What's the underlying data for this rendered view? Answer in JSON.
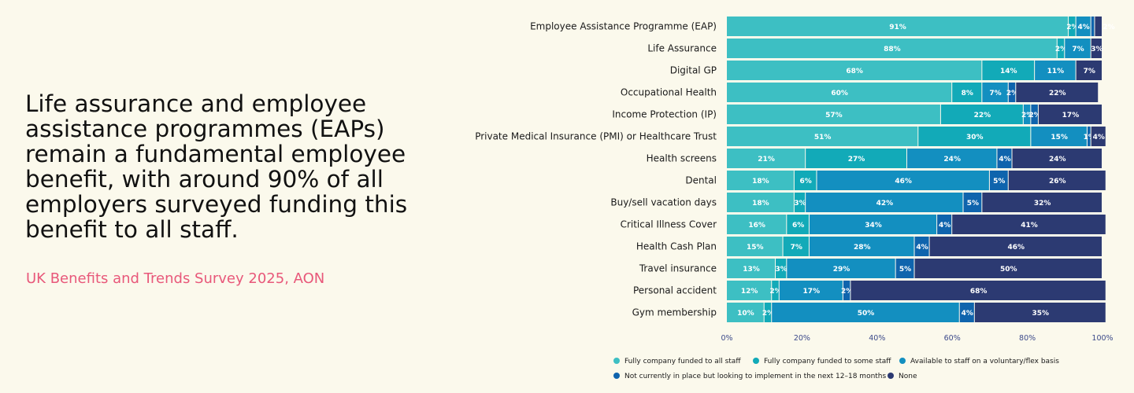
{
  "headline": "Life assurance and employee assistance programmes (EAPs) remain a fundamental employee benefit, with around 90% of all employers surveyed funding this benefit to all staff.",
  "source": "UK Benefits and Trends Survey 2025, AON",
  "chart_data": {
    "type": "bar",
    "orientation": "horizontal",
    "stacked": true,
    "xlim": [
      0,
      100
    ],
    "x_ticks": [
      "0%",
      "20%",
      "40%",
      "60%",
      "80%",
      "100%"
    ],
    "legend_placement": "bottom",
    "categories": [
      "Employee Assistance Programme (EAP)",
      "Life Assurance",
      "Digital GP",
      "Occupational Health",
      "Income Protection (IP)",
      "Private Medical Insurance (PMI) or Healthcare Trust",
      "Health screens",
      "Dental",
      "Buy/sell vacation days",
      "Critical Illness Cover",
      "Health Cash Plan",
      "Travel insurance",
      "Personal accident",
      "Gym membership"
    ],
    "series": [
      {
        "name": "Fully company funded to all staff",
        "color": "#3dbfc3",
        "values": [
          91,
          88,
          68,
          60,
          57,
          51,
          21,
          18,
          18,
          16,
          15,
          13,
          12,
          10
        ]
      },
      {
        "name": "Fully company funded to some staff",
        "color": "#12aab8",
        "values": [
          2,
          2,
          14,
          8,
          22,
          30,
          27,
          6,
          3,
          6,
          7,
          3,
          2,
          2
        ]
      },
      {
        "name": "Available to staff on a voluntary/flex basis",
        "color": "#138fc0",
        "values": [
          4,
          7,
          11,
          7,
          2,
          15,
          24,
          46,
          42,
          34,
          28,
          29,
          17,
          50
        ]
      },
      {
        "name": "Not currently in place but looking to implement in the next 12–18 months",
        "color": "#0f64ad",
        "values": [
          1,
          0,
          0,
          2,
          2,
          1,
          4,
          5,
          5,
          4,
          4,
          5,
          2,
          4
        ]
      },
      {
        "name": "None",
        "color": "#2c3a72",
        "values": [
          2,
          3,
          7,
          22,
          17,
          4,
          24,
          26,
          32,
          41,
          46,
          50,
          68,
          35
        ]
      }
    ],
    "data_labels": [
      [
        "91%",
        "2%",
        "4%",
        "",
        "2%"
      ],
      [
        "88%",
        "2%",
        "7%",
        "",
        "3%"
      ],
      [
        "68%",
        "14%",
        "11%",
        "",
        "7%"
      ],
      [
        "60%",
        "8%",
        "7%",
        "2%",
        "22%"
      ],
      [
        "57%",
        "22%",
        "2%",
        "2%",
        "17%"
      ],
      [
        "51%",
        "30%",
        "15%",
        "1%",
        "4%"
      ],
      [
        "21%",
        "27%",
        "24%",
        "4%",
        "24%"
      ],
      [
        "18%",
        "6%",
        "46%",
        "5%",
        "26%"
      ],
      [
        "18%",
        "3%",
        "42%",
        "5%",
        "32%"
      ],
      [
        "16%",
        "6%",
        "34%",
        "4%",
        "41%"
      ],
      [
        "15%",
        "7%",
        "28%",
        "4%",
        "46%"
      ],
      [
        "13%",
        "3%",
        "29%",
        "5%",
        "50%"
      ],
      [
        "12%",
        "2%",
        "17%",
        "2%",
        "68%"
      ],
      [
        "10%",
        "2%",
        "50%",
        "4%",
        "35%"
      ]
    ]
  }
}
